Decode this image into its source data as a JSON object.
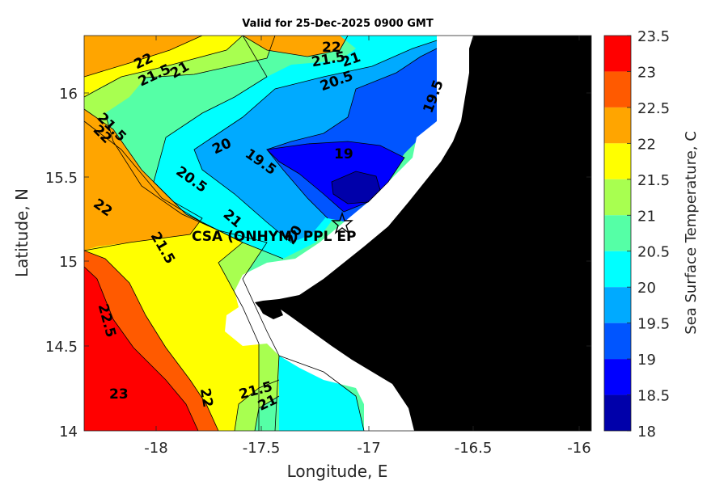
{
  "title": "Valid for 25-Dec-2025 0900 GMT",
  "xlabel": "Longitude, E",
  "ylabel": "Latitude, N",
  "colorbar_label": "Sea Surface Temperature, C",
  "x_ticks": [
    "-18",
    "-17.5",
    "-17",
    "-16.5",
    "-16"
  ],
  "y_ticks": [
    "16",
    "15.5",
    "15",
    "14.5",
    "14"
  ],
  "colorbar": {
    "ticks": [
      "23.5",
      "23",
      "22.5",
      "22",
      "21.5",
      "21",
      "20.5",
      "20",
      "19.5",
      "19",
      "18.5",
      "18"
    ],
    "levels": [
      {
        "from": 23.0,
        "to": 23.5,
        "color": "#ff0000"
      },
      {
        "from": 22.5,
        "to": 23.0,
        "color": "#ff5a00"
      },
      {
        "from": 22.0,
        "to": 22.5,
        "color": "#ffa500"
      },
      {
        "from": 21.5,
        "to": 22.0,
        "color": "#ffff00"
      },
      {
        "from": 21.0,
        "to": 21.5,
        "color": "#a8ff50"
      },
      {
        "from": 20.5,
        "to": 21.0,
        "color": "#55ffa6"
      },
      {
        "from": 20.0,
        "to": 20.5,
        "color": "#00ffff"
      },
      {
        "from": 19.5,
        "to": 20.0,
        "color": "#00aaff"
      },
      {
        "from": 19.0,
        "to": 19.5,
        "color": "#0055ff"
      },
      {
        "from": 18.5,
        "to": 19.0,
        "color": "#0000ff"
      },
      {
        "from": 18.0,
        "to": 18.5,
        "color": "#0000aa"
      }
    ]
  },
  "station": {
    "name": "CSA (ONHYM) PPL EP",
    "lon": -17.1,
    "lat": 15.22
  },
  "contour_labels": [
    "22",
    "21.5",
    "21",
    "21.5",
    "22",
    "21",
    "20.5",
    "19.5",
    "21.5",
    "22",
    "20",
    "19.5",
    "19",
    "20.5",
    "22",
    "21",
    "20",
    "21.5",
    "22.5",
    "23",
    "22",
    "21.5",
    "21"
  ],
  "colors": {
    "land": "#000000",
    "mask": "#ffffff",
    "contour_line": "#000000"
  }
}
